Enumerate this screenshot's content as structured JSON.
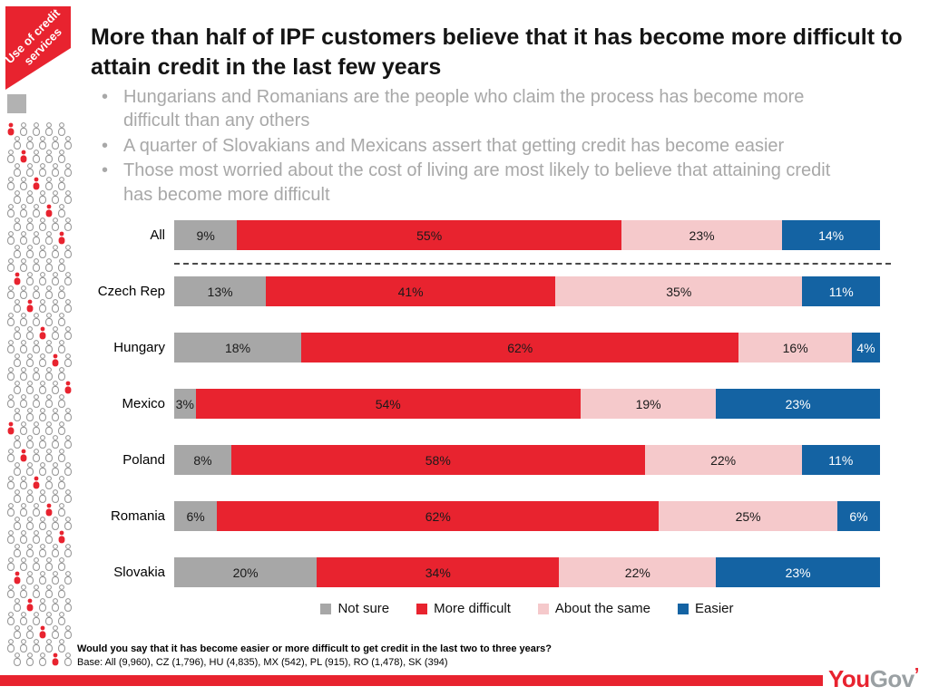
{
  "tag": {
    "label": "Use of credit services"
  },
  "header": {
    "title": "More than half of IPF customers believe that it has become more difficult to attain credit in the last few years",
    "bullets": [
      "Hungarians and Romanians are the people who claim the process has become more difficult than any others",
      "A quarter of Slovakians and Mexicans assert that getting credit has become easier",
      "Those most worried about the cost of living are most likely to believe that attaining credit has become more difficult"
    ]
  },
  "chart_data": {
    "type": "bar",
    "stacked": true,
    "orientation": "horizontal",
    "xlim": [
      0,
      100
    ],
    "value_suffix": "%",
    "legend_position": "bottom",
    "grid": false,
    "categories": [
      "All",
      "Czech Rep",
      "Hungary",
      "Mexico",
      "Poland",
      "Romania",
      "Slovakia"
    ],
    "series": [
      {
        "name": "Not sure",
        "color": "#a7a7a7",
        "label_color": "#1a1a1a",
        "values": [
          9,
          13,
          18,
          3,
          8,
          6,
          20
        ]
      },
      {
        "name": "More difficult",
        "color": "#e8232f",
        "label_color": "#1a1a1a",
        "values": [
          55,
          41,
          62,
          54,
          58,
          62,
          34
        ]
      },
      {
        "name": "About the same",
        "color": "#f5c9cb",
        "label_color": "#1a1a1a",
        "values": [
          23,
          35,
          16,
          19,
          22,
          25,
          22
        ]
      },
      {
        "name": "Easier",
        "color": "#1463a3",
        "label_color": "#ffffff",
        "values": [
          14,
          11,
          4,
          23,
          11,
          6,
          23
        ]
      }
    ],
    "divider_after_category": "All"
  },
  "footer": {
    "question": "Would you say that it has become easier or more difficult to get credit in the last two to three years?",
    "base": "Base: All (9,960), CZ (1,796), HU (4,835), MX (542), PL (915), RO (1,478), SK (394)"
  },
  "logo": {
    "part1": "You",
    "part2": "Gov",
    "mark": "’"
  },
  "colors": {
    "accent_red": "#e8232f",
    "gray": "#a7a7a7",
    "pink": "#f5c9cb",
    "blue": "#1463a3"
  }
}
